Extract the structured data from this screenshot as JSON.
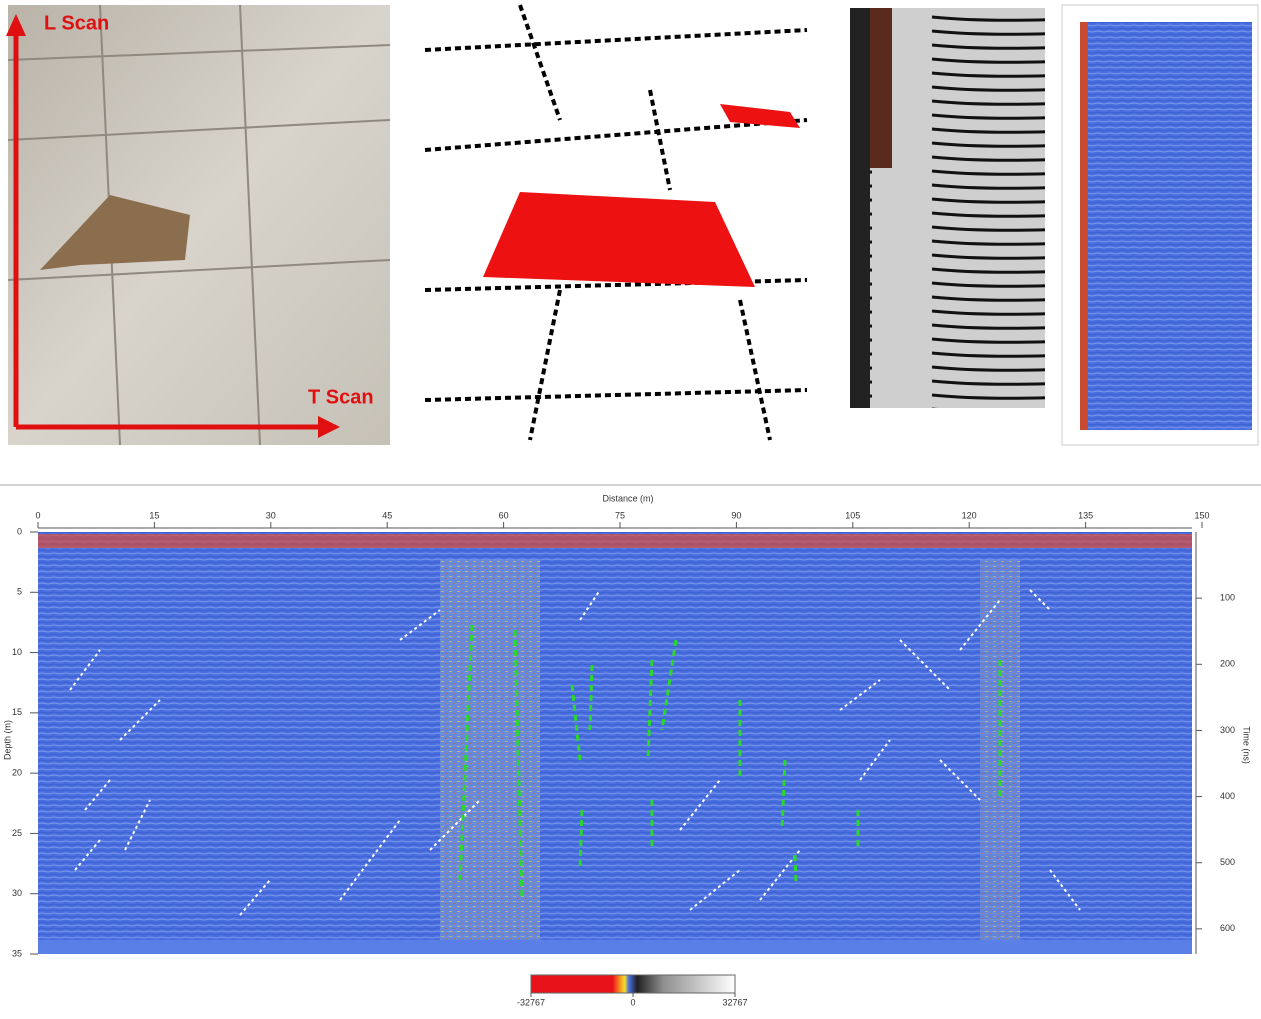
{
  "photo_labels": {
    "l_scan": "L Scan",
    "t_scan": "T Scan"
  },
  "chart_data": {
    "type": "radargram",
    "x_label": "Distance (m)",
    "y_label": "Depth (m)",
    "y2_label": "Time (ns)",
    "xlim": [
      0,
      150
    ],
    "xticks": [
      0,
      15,
      30,
      45,
      60,
      75,
      90,
      105,
      120,
      135,
      150
    ],
    "ylim": [
      0,
      35
    ],
    "yticks": [
      0,
      5,
      10,
      15,
      20,
      25,
      30,
      35
    ],
    "y2lim": [
      0,
      638
    ],
    "y2ticks": [
      100,
      200,
      300,
      400,
      500,
      600
    ],
    "colorbar": {
      "lim": [
        -32767,
        32767
      ],
      "ticks": [
        -32767,
        0,
        32767
      ]
    }
  }
}
